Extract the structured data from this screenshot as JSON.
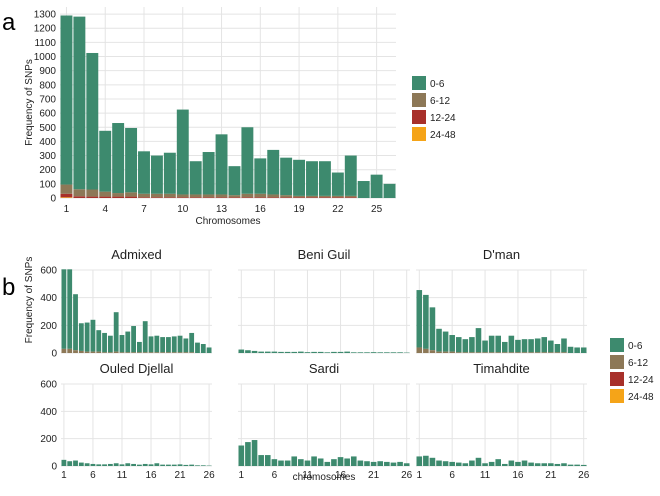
{
  "colors": {
    "c06": "#3d8a6e",
    "c612": "#8d7857",
    "c1224": "#a8302a",
    "c2448": "#f5a418",
    "grid": "#e4e4e4",
    "panel_bg": "#ffffff"
  },
  "chart_data": [
    {
      "panel": "a",
      "type": "bar",
      "stacked": true,
      "categories": [
        1,
        2,
        3,
        4,
        5,
        6,
        7,
        8,
        9,
        10,
        11,
        12,
        13,
        14,
        15,
        16,
        17,
        18,
        19,
        20,
        21,
        22,
        23,
        24,
        25,
        26
      ],
      "series": [
        {
          "name": "0-6",
          "values": [
            1195,
            1220,
            965,
            430,
            495,
            455,
            300,
            270,
            290,
            600,
            235,
            300,
            425,
            205,
            470,
            250,
            315,
            265,
            255,
            245,
            245,
            165,
            285,
            120,
            165,
            100
          ]
        },
        {
          "name": "6-12",
          "values": [
            65,
            50,
            50,
            35,
            25,
            30,
            25,
            25,
            25,
            20,
            20,
            20,
            20,
            15,
            25,
            25,
            20,
            15,
            10,
            10,
            10,
            10,
            10,
            0,
            0,
            0
          ]
        },
        {
          "name": "12-24",
          "values": [
            25,
            12,
            10,
            10,
            10,
            10,
            5,
            5,
            5,
            5,
            5,
            5,
            5,
            5,
            5,
            5,
            5,
            5,
            5,
            5,
            5,
            5,
            5,
            0,
            0,
            0
          ]
        },
        {
          "name": "24-48",
          "values": [
            5,
            0,
            0,
            0,
            0,
            0,
            0,
            0,
            0,
            0,
            0,
            0,
            0,
            0,
            0,
            0,
            0,
            0,
            0,
            0,
            0,
            0,
            0,
            0,
            0,
            0
          ]
        }
      ],
      "ylim": [
        0,
        1350
      ],
      "yticks": [
        0,
        100,
        200,
        300,
        400,
        500,
        600,
        700,
        800,
        900,
        1000,
        1100,
        1200,
        1300
      ],
      "xticks": [
        "1",
        "4",
        "7",
        "10",
        "13",
        "16",
        "19",
        "22",
        "25"
      ],
      "xlabel": "Chromosomes",
      "ylabel": "Frequency of SNPs",
      "legend": [
        "0-6",
        "6-12",
        "12-24",
        "24-48"
      ],
      "legend_position": "right"
    },
    {
      "panel": "b",
      "type": "bar",
      "stacked": true,
      "facets": [
        {
          "title": "Admixed",
          "values": [
            575,
            575,
            405,
            200,
            210,
            230,
            155,
            140,
            120,
            285,
            125,
            150,
            190,
            75,
            225,
            115,
            120,
            110,
            110,
            115,
            120,
            100,
            140,
            75,
            65,
            40
          ],
          "secondary": [
            30,
            30,
            20,
            15,
            10,
            10,
            10,
            5,
            5,
            10,
            5,
            5,
            5,
            5,
            5,
            5,
            5,
            5,
            5,
            5,
            5,
            5,
            5,
            0,
            0,
            0
          ]
        },
        {
          "title": "Beni Guil",
          "values": [
            25,
            20,
            15,
            10,
            10,
            10,
            8,
            8,
            8,
            10,
            6,
            8,
            8,
            5,
            8,
            8,
            10,
            5,
            5,
            5,
            6,
            5,
            5,
            5,
            5,
            3
          ],
          "secondary": [
            0,
            0,
            0,
            0,
            0,
            0,
            0,
            0,
            0,
            0,
            0,
            0,
            0,
            0,
            0,
            0,
            0,
            0,
            0,
            0,
            0,
            0,
            0,
            0,
            0,
            0
          ]
        },
        {
          "title": "D'man",
          "values": [
            415,
            390,
            310,
            165,
            145,
            120,
            110,
            95,
            110,
            175,
            85,
            120,
            120,
            75,
            120,
            90,
            95,
            95,
            100,
            110,
            85,
            60,
            100,
            45,
            40,
            40
          ],
          "secondary": [
            40,
            30,
            20,
            10,
            10,
            10,
            5,
            5,
            5,
            5,
            5,
            5,
            5,
            5,
            5,
            5,
            5,
            5,
            5,
            5,
            5,
            5,
            5,
            0,
            0,
            0
          ]
        },
        {
          "title": "Ouled Djellal",
          "values": [
            45,
            35,
            40,
            25,
            20,
            15,
            12,
            12,
            15,
            20,
            12,
            20,
            15,
            10,
            15,
            12,
            20,
            10,
            10,
            10,
            12,
            8,
            10,
            5,
            5,
            3
          ],
          "secondary": [
            0,
            0,
            0,
            0,
            0,
            0,
            0,
            0,
            0,
            0,
            0,
            0,
            0,
            0,
            0,
            0,
            0,
            0,
            0,
            0,
            0,
            0,
            0,
            0,
            0,
            0
          ]
        },
        {
          "title": "Sardi",
          "values": [
            150,
            175,
            190,
            80,
            80,
            50,
            40,
            40,
            70,
            50,
            40,
            70,
            55,
            30,
            50,
            65,
            55,
            70,
            40,
            35,
            30,
            35,
            30,
            25,
            30,
            20
          ],
          "secondary": [
            0,
            0,
            0,
            0,
            0,
            0,
            0,
            0,
            0,
            0,
            0,
            0,
            0,
            0,
            0,
            0,
            0,
            0,
            0,
            0,
            0,
            0,
            0,
            0,
            0,
            0
          ]
        },
        {
          "title": "Timahdite",
          "values": [
            70,
            75,
            60,
            40,
            35,
            30,
            25,
            20,
            40,
            60,
            20,
            30,
            50,
            15,
            40,
            30,
            40,
            25,
            20,
            20,
            20,
            15,
            20,
            10,
            10,
            8
          ],
          "secondary": [
            0,
            0,
            0,
            0,
            0,
            0,
            0,
            0,
            0,
            0,
            0,
            0,
            0,
            0,
            0,
            0,
            0,
            0,
            0,
            0,
            0,
            0,
            0,
            0,
            0,
            0
          ]
        }
      ],
      "ylim": [
        0,
        600
      ],
      "yticks": [
        0,
        200,
        400,
        600
      ],
      "xticks": [
        "1",
        "6",
        "11",
        "16",
        "21",
        "26"
      ],
      "xlabel": "chromosomes",
      "ylabel": "Frequency of SNPs",
      "legend": [
        "0-6",
        "6-12",
        "12-24",
        "24-48"
      ],
      "legend_position": "right"
    }
  ],
  "labels": {
    "panel_a": "a",
    "panel_b": "b"
  }
}
